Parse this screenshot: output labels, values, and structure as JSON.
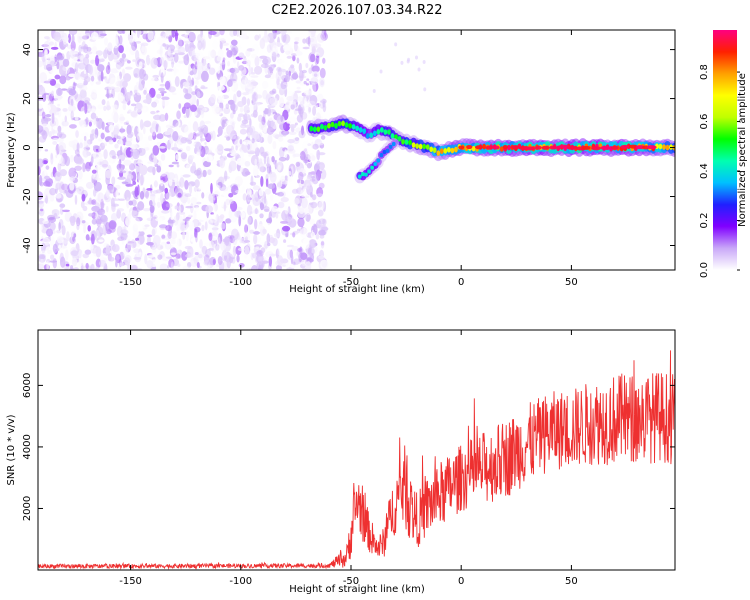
{
  "title": "C2E2.2026.107.03.34.R22",
  "chart_data": [
    {
      "type": "heatmap",
      "title": "C2E2.2026.107.03.34.R22",
      "xlabel": "Height of straight line (km)",
      "ylabel": "Frequency (Hz)",
      "xlim": [
        -192,
        97
      ],
      "ylim": [
        -50,
        48
      ],
      "xticks": [
        -150,
        -100,
        -50,
        0,
        50
      ],
      "yticks": [
        -40,
        -20,
        0,
        20,
        40
      ],
      "colorbar": {
        "label": "Normalized spectral amplitude",
        "range": [
          0,
          0.97
        ],
        "ticks": [
          0.0,
          0.2,
          0.4,
          0.6,
          0.8
        ],
        "colors": [
          "#ffffff",
          "#c9a8f8",
          "#8000ff",
          "#2020ff",
          "#00c0ff",
          "#00ffb0",
          "#00ff00",
          "#c0ff00",
          "#ffff00",
          "#ffa000",
          "#ff2000",
          "#ff0080"
        ]
      },
      "noise_region": {
        "x_from": -192,
        "x_to": -62,
        "freq_from": -50,
        "freq_to": 48,
        "amplitude_max": 0.15
      },
      "signal_track": [
        {
          "x": -68,
          "freq": 8,
          "amp": 0.5
        },
        {
          "x": -62,
          "freq": 8,
          "amp": 0.5
        },
        {
          "x": -58,
          "freq": 9,
          "amp": 0.55
        },
        {
          "x": -54,
          "freq": 10,
          "amp": 0.6
        },
        {
          "x": -51,
          "freq": 9,
          "amp": 0.5
        },
        {
          "x": -47,
          "freq": 8,
          "amp": 0.45
        },
        {
          "x": -42,
          "freq": 5,
          "amp": 0.35
        },
        {
          "x": -38,
          "freq": 7,
          "amp": 0.45
        },
        {
          "x": -33,
          "freq": 6,
          "amp": 0.5
        },
        {
          "x": -28,
          "freq": 3,
          "amp": 0.5
        },
        {
          "x": -24,
          "freq": 2,
          "amp": 0.55
        },
        {
          "x": -20,
          "freq": 1,
          "amp": 0.6
        },
        {
          "x": -15,
          "freq": 0,
          "amp": 0.65
        },
        {
          "x": -10,
          "freq": -2,
          "amp": 0.7
        },
        {
          "x": -5,
          "freq": -1,
          "amp": 0.75
        },
        {
          "x": 0,
          "freq": 0,
          "amp": 0.8
        },
        {
          "x": 10,
          "freq": 0,
          "amp": 0.85
        },
        {
          "x": 20,
          "freq": 0,
          "amp": 0.85
        },
        {
          "x": 40,
          "freq": 0,
          "amp": 0.88
        },
        {
          "x": 60,
          "freq": 0,
          "amp": 0.88
        },
        {
          "x": 80,
          "freq": 0,
          "amp": 0.86
        },
        {
          "x": 97,
          "freq": 0,
          "amp": 0.7
        }
      ],
      "branch": [
        {
          "x": -46,
          "freq": -12,
          "amp": 0.45
        },
        {
          "x": -42,
          "freq": -10,
          "amp": 0.4
        },
        {
          "x": -38,
          "freq": -6,
          "amp": 0.35
        },
        {
          "x": -35,
          "freq": -2,
          "amp": 0.3
        },
        {
          "x": -30,
          "freq": 2,
          "amp": 0.3
        }
      ]
    },
    {
      "type": "line",
      "xlabel": "Height of straight line (km)",
      "ylabel": "SNR (10 * v/v)",
      "xlim": [
        -192,
        97
      ],
      "ylim": [
        0,
        7800
      ],
      "xticks": [
        -150,
        -100,
        -50,
        0,
        50
      ],
      "yticks": [
        2000,
        4000,
        6000
      ],
      "color": "#ee3030",
      "envelope": {
        "x": [
          -192,
          -60,
          -52,
          -50,
          -47,
          -44,
          -41,
          -38,
          -35,
          -32,
          -29,
          -26,
          -23,
          -20,
          -15,
          -10,
          -5,
          0,
          10,
          20,
          30,
          40,
          50,
          60,
          70,
          80,
          90,
          97
        ],
        "center": [
          120,
          140,
          400,
          1200,
          2300,
          1600,
          1100,
          700,
          900,
          1800,
          2300,
          2800,
          2000,
          1600,
          2100,
          2400,
          2700,
          3000,
          3300,
          3600,
          4100,
          4500,
          4600,
          4800,
          4900,
          4900,
          5000,
          4900
        ],
        "spread": [
          70,
          70,
          350,
          800,
          1000,
          800,
          600,
          400,
          500,
          800,
          1100,
          1400,
          1100,
          900,
          1000,
          1100,
          1100,
          1100,
          1200,
          1300,
          1300,
          1300,
          1300,
          1400,
          1500,
          1500,
          1500,
          1500
        ]
      }
    }
  ]
}
